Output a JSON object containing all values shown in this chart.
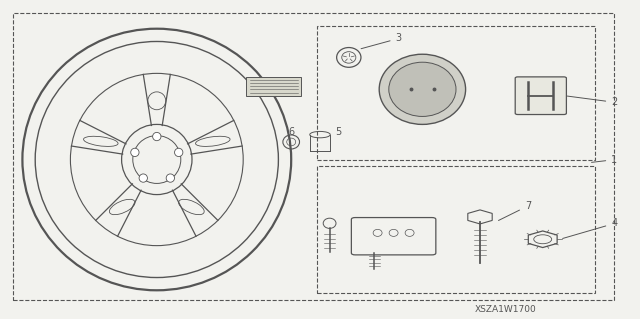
{
  "bg_color": "#f2f2ee",
  "line_color": "#555555",
  "title_code": "XSZA1W1700"
}
